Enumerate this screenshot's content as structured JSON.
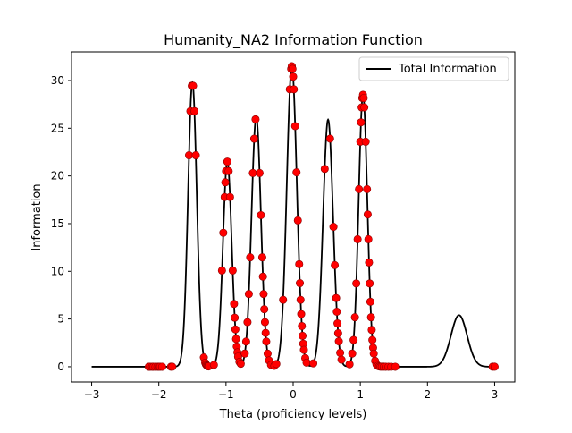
{
  "chart_data": {
    "type": "line",
    "title": "Humanity_NA2 Information Function",
    "xlabel": "Theta (proficiency levels)",
    "ylabel": "Information",
    "xlim": [
      -3.3,
      3.3
    ],
    "ylim": [
      -1.6,
      33.0
    ],
    "xticks": [
      -3,
      -2,
      -1,
      0,
      1,
      2,
      3
    ],
    "yticks": [
      0,
      5,
      10,
      15,
      20,
      25,
      30
    ],
    "grid": false,
    "legend": {
      "position": "upper-right",
      "entries": [
        "Total Information"
      ]
    },
    "series": [
      {
        "name": "Total Information",
        "color": "#000000",
        "peaks": [
          {
            "mu": -1.5,
            "height": 29.8,
            "sigma": 0.065
          },
          {
            "mu": -0.98,
            "height": 21.5,
            "sigma": 0.065
          },
          {
            "mu": -0.55,
            "height": 26.2,
            "sigma": 0.07
          },
          {
            "mu": -0.02,
            "height": 31.5,
            "sigma": 0.075
          },
          {
            "mu": 0.52,
            "height": 25.9,
            "sigma": 0.075
          },
          {
            "mu": 1.04,
            "height": 28.5,
            "sigma": 0.065
          },
          {
            "mu": 2.47,
            "height": 5.4,
            "sigma": 0.12
          }
        ]
      }
    ],
    "scatter_color": "#ff0000",
    "scatter_x": [
      -2.15,
      -2.13,
      -2.1,
      -2.08,
      -2.05,
      -2.02,
      -2.0,
      -1.98,
      -1.95,
      -1.82,
      -1.8,
      -1.55,
      -1.53,
      -1.51,
      -1.49,
      -1.47,
      -1.45,
      -1.33,
      -1.31,
      -1.3,
      -1.29,
      -1.28,
      -1.27,
      -1.26,
      -1.18,
      -1.06,
      -1.04,
      -1.02,
      -1.01,
      -1.0,
      -0.98,
      -0.96,
      -0.94,
      -0.9,
      -0.88,
      -0.87,
      -0.86,
      -0.85,
      -0.84,
      -0.83,
      -0.82,
      -0.8,
      -0.78,
      -0.72,
      -0.7,
      -0.68,
      -0.66,
      -0.64,
      -0.6,
      -0.58,
      -0.56,
      -0.5,
      -0.48,
      -0.46,
      -0.45,
      -0.44,
      -0.43,
      -0.42,
      -0.41,
      -0.4,
      -0.38,
      -0.36,
      -0.33,
      -0.28,
      -0.25,
      -0.15,
      -0.05,
      -0.03,
      -0.02,
      -0.01,
      0.0,
      0.01,
      0.03,
      0.05,
      0.07,
      0.09,
      0.1,
      0.11,
      0.12,
      0.13,
      0.14,
      0.15,
      0.16,
      0.18,
      0.2,
      0.3,
      0.47,
      0.55,
      0.6,
      0.62,
      0.64,
      0.65,
      0.66,
      0.67,
      0.68,
      0.7,
      0.72,
      0.84,
      0.88,
      0.9,
      0.92,
      0.94,
      0.96,
      0.98,
      1.0,
      1.01,
      1.02,
      1.03,
      1.04,
      1.05,
      1.06,
      1.08,
      1.1,
      1.11,
      1.12,
      1.13,
      1.14,
      1.15,
      1.16,
      1.17,
      1.18,
      1.19,
      1.2,
      1.22,
      1.24,
      1.26,
      1.28,
      1.3,
      1.32,
      1.35,
      1.38,
      1.42,
      1.46,
      1.52,
      2.97,
      3.0
    ]
  }
}
